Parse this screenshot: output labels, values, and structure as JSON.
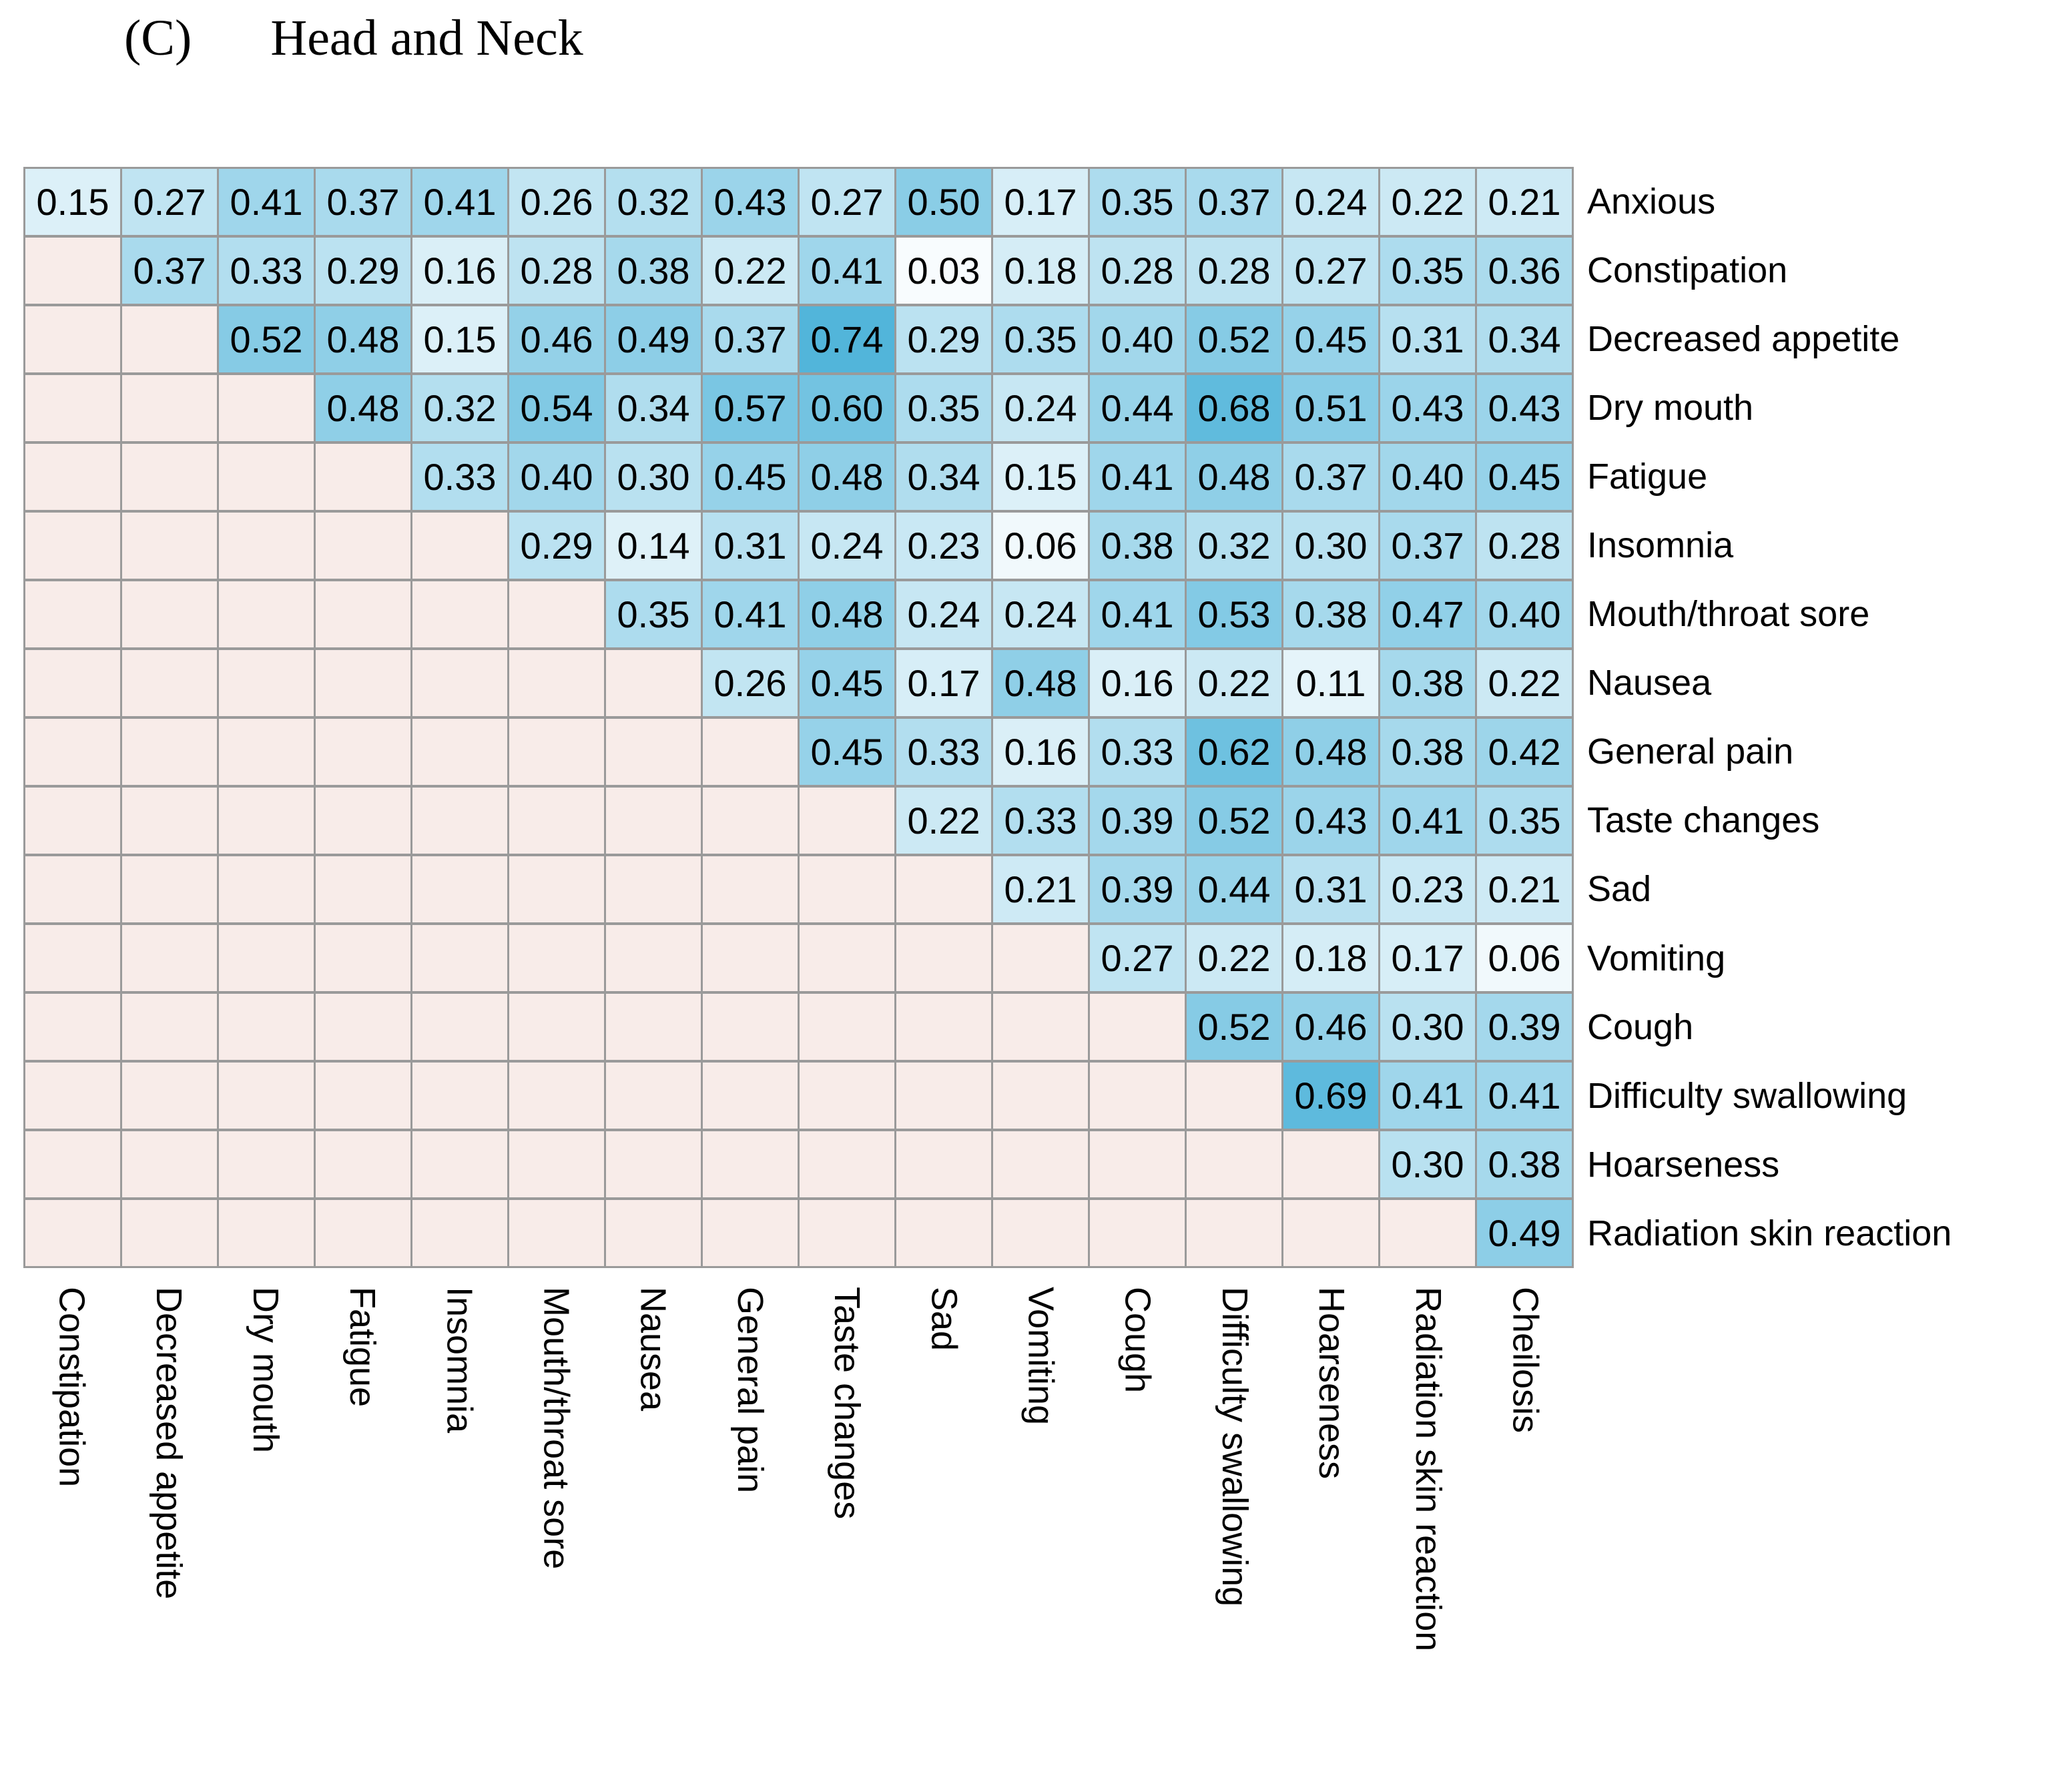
{
  "title": {
    "panel_index": "(C)",
    "panel_name": "Head and Neck"
  },
  "chart_data": {
    "type": "heatmap",
    "title": "(C) Head and Neck",
    "row_labels": [
      "Anxious",
      "Constipation",
      "Decreased appetite",
      "Dry mouth",
      "Fatigue",
      "Insomnia",
      "Mouth/throat sore",
      "Nausea",
      "General pain",
      "Taste changes",
      "Sad",
      "Vomiting",
      "Cough",
      "Difficulty swallowing",
      "Hoarseness",
      "Radiation skin reaction"
    ],
    "column_labels": [
      "Constipation",
      "Decreased appetite",
      "Dry mouth",
      "Fatigue",
      "Insomnia",
      "Mouth/throat sore",
      "Nausea",
      "General pain",
      "Taste changes",
      "Sad",
      "Vomiting",
      "Cough",
      "Difficulty swallowing",
      "Hoarseness",
      "Radiation skin reaction",
      "Cheilosis"
    ],
    "matrix": [
      [
        0.15,
        0.27,
        0.41,
        0.37,
        0.41,
        0.26,
        0.32,
        0.43,
        0.27,
        0.5,
        0.17,
        0.35,
        0.37,
        0.24,
        0.22,
        0.21
      ],
      [
        null,
        0.37,
        0.33,
        0.29,
        0.16,
        0.28,
        0.38,
        0.22,
        0.41,
        0.03,
        0.18,
        0.28,
        0.28,
        0.27,
        0.35,
        0.36
      ],
      [
        null,
        null,
        0.52,
        0.48,
        0.15,
        0.46,
        0.49,
        0.37,
        0.74,
        0.29,
        0.35,
        0.4,
        0.52,
        0.45,
        0.31,
        0.34
      ],
      [
        null,
        null,
        null,
        0.48,
        0.32,
        0.54,
        0.34,
        0.57,
        0.6,
        0.35,
        0.24,
        0.44,
        0.68,
        0.51,
        0.43,
        0.43
      ],
      [
        null,
        null,
        null,
        null,
        0.33,
        0.4,
        0.3,
        0.45,
        0.48,
        0.34,
        0.15,
        0.41,
        0.48,
        0.37,
        0.4,
        0.45
      ],
      [
        null,
        null,
        null,
        null,
        null,
        0.29,
        0.14,
        0.31,
        0.24,
        0.23,
        0.06,
        0.38,
        0.32,
        0.3,
        0.37,
        0.28
      ],
      [
        null,
        null,
        null,
        null,
        null,
        null,
        0.35,
        0.41,
        0.48,
        0.24,
        0.24,
        0.41,
        0.53,
        0.38,
        0.47,
        0.4
      ],
      [
        null,
        null,
        null,
        null,
        null,
        null,
        null,
        0.26,
        0.45,
        0.17,
        0.48,
        0.16,
        0.22,
        0.11,
        0.38,
        0.22
      ],
      [
        null,
        null,
        null,
        null,
        null,
        null,
        null,
        null,
        0.45,
        0.33,
        0.16,
        0.33,
        0.62,
        0.48,
        0.38,
        0.42
      ],
      [
        null,
        null,
        null,
        null,
        null,
        null,
        null,
        null,
        null,
        0.22,
        0.33,
        0.39,
        0.52,
        0.43,
        0.41,
        0.35
      ],
      [
        null,
        null,
        null,
        null,
        null,
        null,
        null,
        null,
        null,
        null,
        0.21,
        0.39,
        0.44,
        0.31,
        0.23,
        0.21
      ],
      [
        null,
        null,
        null,
        null,
        null,
        null,
        null,
        null,
        null,
        null,
        null,
        0.27,
        0.22,
        0.18,
        0.17,
        0.06
      ],
      [
        null,
        null,
        null,
        null,
        null,
        null,
        null,
        null,
        null,
        null,
        null,
        null,
        0.52,
        0.46,
        0.3,
        0.39
      ],
      [
        null,
        null,
        null,
        null,
        null,
        null,
        null,
        null,
        null,
        null,
        null,
        null,
        null,
        0.69,
        0.41,
        0.41
      ],
      [
        null,
        null,
        null,
        null,
        null,
        null,
        null,
        null,
        null,
        null,
        null,
        null,
        null,
        null,
        0.3,
        0.38
      ],
      [
        null,
        null,
        null,
        null,
        null,
        null,
        null,
        null,
        null,
        null,
        null,
        null,
        null,
        null,
        null,
        0.49
      ]
    ],
    "value_range": [
      0,
      0.74
    ],
    "colors": {
      "empty_cell": "#f8ece9",
      "scale_low": "#ffffff",
      "scale_high": "#50b4da",
      "scale_vmax": 0.75,
      "gridline": "#9a9a9a",
      "text": "#000000"
    },
    "layout": {
      "triangle": "upper",
      "grid": true,
      "legend": false
    }
  }
}
